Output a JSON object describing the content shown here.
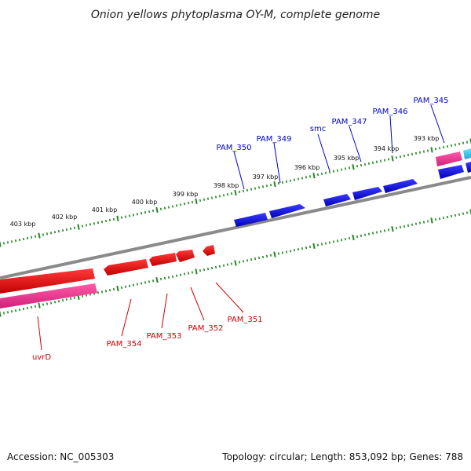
{
  "title": "Onion yellows phytoplasma OY-M, complete genome",
  "accession": "Accession: NC_005303",
  "topology": "Topology: circular; Length: 853,092 bp; Genes: 788",
  "colors": {
    "backbone": "#808080",
    "forward_strand": "#0000dd",
    "reverse_strand": "#ee0000",
    "rrna": "#ff3399",
    "trna": "#33ccee",
    "ticks": "#228822",
    "forward_label": "#0000cc",
    "reverse_label": "#cc0000"
  },
  "scale": {
    "major_ticks_upper": [
      "403 kbp",
      "402 kbp",
      "401 kbp",
      "400 kbp",
      "399 kbp",
      "398 kbp",
      "397 kbp",
      "396 kbp",
      "395 kbp",
      "394 kbp",
      "393 kbp"
    ]
  },
  "forward_labels": [
    "PAM_350",
    "PAM_349",
    "smc",
    "PAM_347",
    "PAM_346",
    "PAM_345"
  ],
  "reverse_labels": [
    "PAM_354",
    "PAM_353",
    "PAM_352",
    "PAM_351",
    "uvrD"
  ]
}
